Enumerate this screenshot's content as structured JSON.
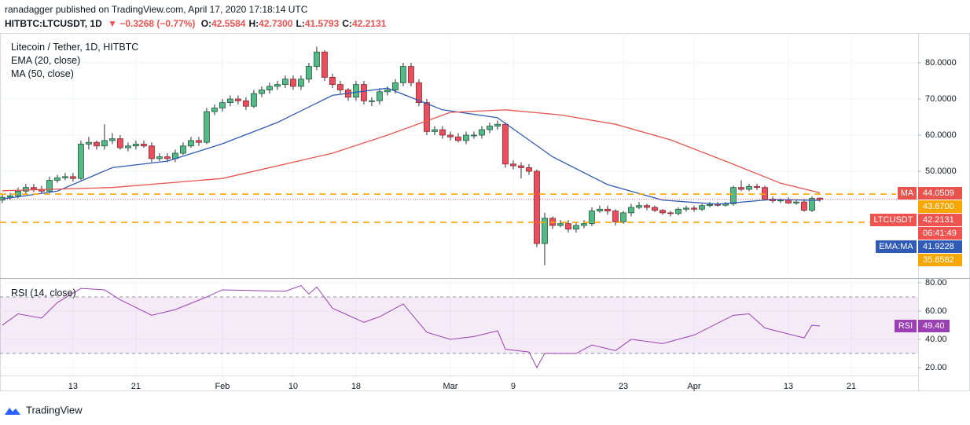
{
  "header": {
    "published": "ranadagger published on TradingView.com, April 17, 2020 17:18:14 UTC",
    "symbol": "HITBTC:LTCUSDT, 1D",
    "change": "▼ −0.3268 (−0.77%)",
    "ohlc": [
      {
        "key": "O:",
        "value": "42.5584"
      },
      {
        "key": "H:",
        "value": "42.7300"
      },
      {
        "key": "L:",
        "value": "41.5793"
      },
      {
        "key": "C:",
        "value": "42.2131"
      }
    ]
  },
  "legend": {
    "title": "Litecoin / Tether, 1D, HITBTC",
    "ema": "EMA (20, close)",
    "ma": "MA (50, close)"
  },
  "footer": "TradingView",
  "chart_data": [
    {
      "type": "candlestick",
      "x": [
        "2020-01-04",
        "2020-01-05",
        "2020-01-06",
        "2020-01-07",
        "2020-01-08",
        "2020-01-09",
        "2020-01-10",
        "2020-01-11",
        "2020-01-12",
        "2020-01-13",
        "2020-01-14",
        "2020-01-15",
        "2020-01-16",
        "2020-01-17",
        "2020-01-18",
        "2020-01-19",
        "2020-01-20",
        "2020-01-21",
        "2020-01-22",
        "2020-01-23",
        "2020-01-24",
        "2020-01-25",
        "2020-01-26",
        "2020-01-27",
        "2020-01-28",
        "2020-01-29",
        "2020-01-30",
        "2020-01-31",
        "2020-02-01",
        "2020-02-02",
        "2020-02-03",
        "2020-02-04",
        "2020-02-05",
        "2020-02-06",
        "2020-02-07",
        "2020-02-08",
        "2020-02-09",
        "2020-02-10",
        "2020-02-11",
        "2020-02-12",
        "2020-02-13",
        "2020-02-14",
        "2020-02-15",
        "2020-02-16",
        "2020-02-17",
        "2020-02-18",
        "2020-02-19",
        "2020-02-20",
        "2020-02-21",
        "2020-02-22",
        "2020-02-23",
        "2020-02-24",
        "2020-02-25",
        "2020-02-26",
        "2020-02-27",
        "2020-02-28",
        "2020-02-29",
        "2020-03-01",
        "2020-03-02",
        "2020-03-03",
        "2020-03-04",
        "2020-03-05",
        "2020-03-06",
        "2020-03-07",
        "2020-03-08",
        "2020-03-09",
        "2020-03-10",
        "2020-03-11",
        "2020-03-12",
        "2020-03-13",
        "2020-03-14",
        "2020-03-15",
        "2020-03-16",
        "2020-03-17",
        "2020-03-18",
        "2020-03-19",
        "2020-03-20",
        "2020-03-21",
        "2020-03-22",
        "2020-03-23",
        "2020-03-24",
        "2020-03-25",
        "2020-03-26",
        "2020-03-27",
        "2020-03-28",
        "2020-03-29",
        "2020-03-30",
        "2020-03-31",
        "2020-04-01",
        "2020-04-02",
        "2020-04-03",
        "2020-04-04",
        "2020-04-05",
        "2020-04-06",
        "2020-04-07",
        "2020-04-08",
        "2020-04-09",
        "2020-04-10",
        "2020-04-11",
        "2020-04-12",
        "2020-04-13",
        "2020-04-14",
        "2020-04-15",
        "2020-04-16",
        "2020-04-17"
      ],
      "open": [
        42,
        42.8,
        43.2,
        44.5,
        45.5,
        45,
        44.5,
        47.5,
        48.2,
        48.5,
        48,
        57.5,
        58,
        57,
        58.5,
        59,
        56.5,
        57,
        57.5,
        57,
        53.5,
        54,
        53.5,
        55,
        57,
        58.5,
        58,
        66.5,
        67.5,
        69,
        70,
        69.5,
        68,
        71.5,
        72.5,
        73.5,
        74,
        75.5,
        73.5,
        75.5,
        79,
        83,
        76,
        74,
        72.5,
        70.5,
        74,
        69.5,
        69.5,
        72,
        72.5,
        74.5,
        79,
        74.5,
        69,
        61,
        61.5,
        60,
        59.5,
        58.5,
        60,
        60,
        61.5,
        62.5,
        63,
        52,
        51.5,
        51,
        50,
        30,
        37,
        35,
        35.5,
        34,
        35,
        35.5,
        39,
        39.5,
        39,
        36,
        38.5,
        40,
        40.5,
        40,
        39.2,
        38.5,
        38.3,
        39.5,
        39.8,
        39.5,
        40.5,
        40.8,
        40.6,
        41,
        45.5,
        45,
        45.8,
        45.5,
        42.3,
        41.8,
        42,
        41.2,
        41.5,
        39.2,
        42.5584
      ],
      "high": [
        43.5,
        44,
        45.5,
        46.5,
        46.5,
        46,
        48.5,
        49,
        49.5,
        49.5,
        58.5,
        59.5,
        58.5,
        63,
        60.5,
        60,
        58,
        58.5,
        58.5,
        58,
        55,
        55,
        56,
        58,
        59.5,
        59.5,
        67.5,
        68.5,
        70,
        71,
        71,
        70.5,
        72.5,
        73.5,
        74.5,
        75,
        76.5,
        76.5,
        76.5,
        80,
        84.5,
        83.5,
        77,
        75,
        73,
        75,
        75,
        70.5,
        73,
        73.5,
        75.5,
        80,
        80,
        75.5,
        70,
        62.5,
        62.5,
        61,
        60.5,
        61,
        61,
        62.5,
        63.5,
        64,
        63.5,
        53,
        52.5,
        52,
        50.5,
        38.5,
        37.5,
        36.5,
        36.5,
        36,
        36.5,
        40,
        40.5,
        40.5,
        39.5,
        39,
        41,
        41.5,
        41,
        40.5,
        39.5,
        39,
        40,
        40.5,
        40.5,
        41,
        41.5,
        41.5,
        41.5,
        46,
        47.5,
        46.5,
        46.5,
        46,
        43,
        42.5,
        42.8,
        42,
        42.3,
        43,
        42.73
      ],
      "low": [
        41.2,
        42,
        42.5,
        43.8,
        44.2,
        43.8,
        44,
        46.8,
        47.5,
        47.2,
        47.5,
        56,
        56,
        56,
        57.5,
        56,
        55.5,
        56,
        56.5,
        52.5,
        52.8,
        52.5,
        52.5,
        54.5,
        56.5,
        57,
        57.5,
        65.5,
        66.5,
        68,
        68.5,
        67,
        67.5,
        70.5,
        71.5,
        72.5,
        73,
        72.5,
        72.5,
        74.5,
        78,
        75,
        73,
        71.5,
        69.5,
        69.5,
        68.5,
        68,
        68.5,
        71,
        71.5,
        73.5,
        73.5,
        68,
        60,
        60,
        59,
        58.5,
        58,
        57.5,
        59,
        59,
        60.5,
        61.5,
        51,
        50.5,
        48,
        49,
        29,
        24,
        34,
        34.5,
        33,
        33,
        34.2,
        34.8,
        38.5,
        38,
        35,
        35.5,
        37.5,
        39.5,
        39.2,
        38.7,
        38,
        37.5,
        37.8,
        38.8,
        38.8,
        39,
        40,
        40.2,
        40.2,
        40.5,
        44.5,
        44.5,
        44.8,
        42,
        41.2,
        41.2,
        41,
        40.7,
        38.8,
        38.7,
        41.5793
      ],
      "close": [
        42.8,
        43.2,
        44.5,
        45.5,
        45,
        44.5,
        47.5,
        48.2,
        48.5,
        48,
        57.5,
        58,
        57,
        58.5,
        59,
        56.5,
        57,
        57.5,
        57,
        53.5,
        54,
        53.5,
        55,
        57,
        58.5,
        58,
        66.5,
        67.5,
        69,
        70,
        69.5,
        68,
        71.5,
        72.5,
        73.5,
        74,
        75.5,
        73.5,
        75.5,
        79,
        83,
        76,
        74,
        72.5,
        70.5,
        74,
        69.5,
        69.5,
        72,
        72.5,
        74.5,
        79,
        74.5,
        69,
        61,
        61.5,
        60,
        59.5,
        58.5,
        60,
        60,
        61.5,
        62.5,
        63,
        52,
        51.5,
        51,
        50,
        30,
        37,
        35,
        35.5,
        34,
        35,
        35.5,
        39,
        39.5,
        39,
        36,
        38.5,
        40,
        40.5,
        40,
        39.2,
        38.5,
        38.3,
        39.5,
        39.8,
        39.5,
        40.5,
        40.8,
        40.6,
        41,
        45.5,
        45,
        45.8,
        45.5,
        42.3,
        41.8,
        42,
        41.2,
        41.5,
        39.2,
        42.5,
        42.2131
      ],
      "up_color": "#53b987",
      "down_color": "#eb4d5c",
      "series": [
        {
          "name": "EMA",
          "color": "#2f5bb7",
          "x": [
            "2020-01-04",
            "2020-01-11",
            "2020-01-18",
            "2020-01-25",
            "2020-02-01",
            "2020-02-08",
            "2020-02-15",
            "2020-02-22",
            "2020-02-29",
            "2020-03-07",
            "2020-03-14",
            "2020-03-21",
            "2020-03-28",
            "2020-04-04",
            "2020-04-11",
            "2020-04-17"
          ],
          "values": [
            42.3,
            44.5,
            51,
            52.8,
            57.6,
            63.5,
            71,
            73,
            67,
            64.8,
            54,
            46.3,
            42,
            40.9,
            42.2,
            41.9228
          ]
        },
        {
          "name": "MA",
          "color": "#e8534e",
          "x": [
            "2020-01-04",
            "2020-01-18",
            "2020-02-01",
            "2020-02-15",
            "2020-02-22",
            "2020-03-01",
            "2020-03-08",
            "2020-03-15",
            "2020-03-22",
            "2020-03-29",
            "2020-04-05",
            "2020-04-12",
            "2020-04-17"
          ],
          "values": [
            44.6,
            45.5,
            48,
            55,
            60,
            66.3,
            67,
            65.6,
            63,
            58.7,
            52.8,
            46.7,
            44.0509
          ]
        }
      ],
      "price_labels": [
        {
          "name": "MA",
          "value": 44.0509,
          "color": "#e8534e"
        },
        {
          "value": 43.67,
          "label": "43.6700",
          "color": "#f7a600",
          "style": "dashed"
        },
        {
          "name": "LTCUSDT",
          "value": 42.2131,
          "color": "#ef5350"
        },
        {
          "label": "06:41:49",
          "color": "#ef5350"
        },
        {
          "name": "EMA:MA",
          "value": 41.9228,
          "color": "#2f5bb7"
        },
        {
          "value": 35.8582,
          "color": "#f7a600",
          "style": "dashed"
        }
      ],
      "xlim": [
        "2020-01-03T17:00",
        "2020-04-29T12:00"
      ],
      "xticks": [
        {
          "value": "2020-01-13",
          "label": "13"
        },
        {
          "value": "2020-01-21",
          "label": "21"
        },
        {
          "value": "2020-02-01",
          "label": "Feb"
        },
        {
          "value": "2020-02-10",
          "label": "10"
        },
        {
          "value": "2020-02-18",
          "label": "18"
        },
        {
          "value": "2020-03-01",
          "label": "Mar"
        },
        {
          "value": "2020-03-09",
          "label": "9"
        },
        {
          "value": "2020-03-23",
          "label": "23"
        },
        {
          "value": "2020-04-01",
          "label": "Apr"
        },
        {
          "value": "2020-04-13",
          "label": "13"
        },
        {
          "value": "2020-04-21",
          "label": "21"
        }
      ],
      "ylim": [
        20.65,
        88.26
      ],
      "yticks": [
        {
          "value": 50,
          "label": "50.0000"
        },
        {
          "value": 60,
          "label": "60.0000"
        },
        {
          "value": 70,
          "label": "70.0000"
        },
        {
          "value": 80,
          "label": "80.0000"
        }
      ],
      "grid": true
    },
    {
      "type": "line",
      "title": "RSI (14, close)",
      "series": [
        {
          "name": "RSI",
          "color": "#9c3fb5",
          "x": [
            "2020-01-04",
            "2020-01-06",
            "2020-01-09",
            "2020-01-11",
            "2020-01-14",
            "2020-01-17",
            "2020-01-19",
            "2020-01-23",
            "2020-01-26",
            "2020-01-30",
            "2020-02-01",
            "2020-02-09",
            "2020-02-11",
            "2020-02-12",
            "2020-02-13",
            "2020-02-15",
            "2020-02-19",
            "2020-02-21",
            "2020-02-24",
            "2020-02-27",
            "2020-03-01",
            "2020-03-04",
            "2020-03-07",
            "2020-03-08",
            "2020-03-11",
            "2020-03-12",
            "2020-03-13",
            "2020-03-17",
            "2020-03-19",
            "2020-03-22",
            "2020-03-24",
            "2020-03-28",
            "2020-04-01",
            "2020-04-06",
            "2020-04-08",
            "2020-04-10",
            "2020-04-15",
            "2020-04-16",
            "2020-04-17"
          ],
          "values": [
            50,
            58,
            55,
            66,
            76,
            75,
            68,
            57,
            61,
            70,
            75,
            74,
            78,
            72,
            77,
            62,
            52,
            56,
            65,
            45,
            40,
            42,
            46,
            33,
            31,
            20,
            30,
            30,
            36,
            32,
            40,
            37,
            43,
            57,
            58,
            48,
            41,
            50,
            49.4
          ],
          "current": {
            "value": 49.4,
            "label": "49.40"
          }
        }
      ],
      "bands": [
        30,
        70
      ],
      "band_color": "#9c3fb5",
      "ylim": [
        14.4,
        82.2
      ],
      "yticks": [
        {
          "value": 20,
          "label": "20.00"
        },
        {
          "value": 40,
          "label": "40.00"
        },
        {
          "value": 60,
          "label": "60.00"
        },
        {
          "value": 80,
          "label": "80.00"
        }
      ],
      "grid": true
    }
  ]
}
